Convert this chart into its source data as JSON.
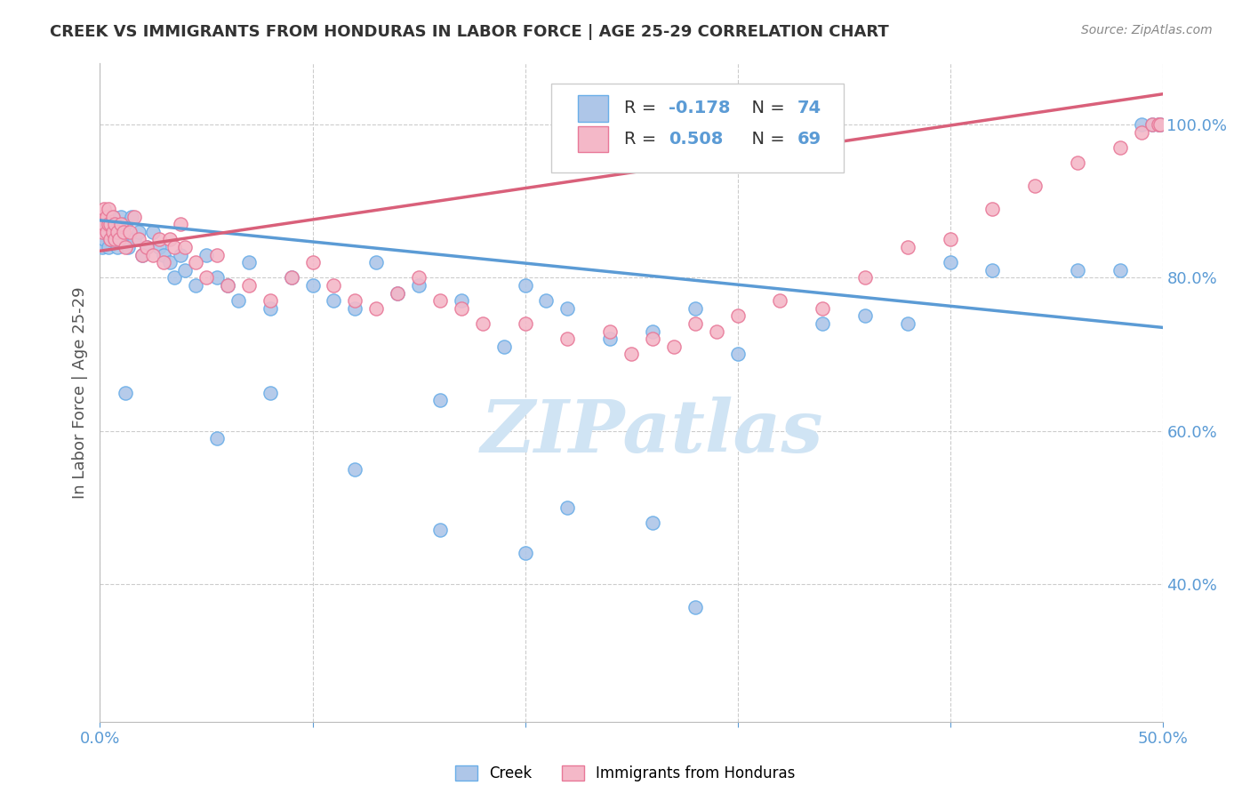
{
  "title": "CREEK VS IMMIGRANTS FROM HONDURAS IN LABOR FORCE | AGE 25-29 CORRELATION CHART",
  "source": "Source: ZipAtlas.com",
  "ylabel": "In Labor Force | Age 25-29",
  "xlim": [
    0.0,
    0.5
  ],
  "ylim": [
    0.22,
    1.08
  ],
  "creek_color": "#aec6e8",
  "creek_edge_color": "#6aaee8",
  "honduras_color": "#f4b8c8",
  "honduras_edge_color": "#e87898",
  "creek_line_color": "#5b9bd5",
  "honduras_line_color": "#d9607a",
  "watermark_color": "#d0e4f4",
  "grid_color": "#cccccc",
  "axis_color": "#5b9bd5",
  "title_color": "#333333",
  "source_color": "#888888",
  "ylabel_color": "#555555",
  "background_color": "#ffffff",
  "creek_R": -0.178,
  "creek_N": 74,
  "honduras_R": 0.508,
  "honduras_N": 69,
  "creek_line_x0": 0.0,
  "creek_line_y0": 0.875,
  "creek_line_x1": 0.5,
  "creek_line_y1": 0.735,
  "honduras_line_x0": 0.0,
  "honduras_line_y0": 0.835,
  "honduras_line_x1": 0.5,
  "honduras_line_y1": 1.04,
  "creek_scatter_x": [
    0.001,
    0.001,
    0.002,
    0.002,
    0.002,
    0.003,
    0.003,
    0.003,
    0.004,
    0.004,
    0.004,
    0.005,
    0.005,
    0.005,
    0.006,
    0.006,
    0.007,
    0.007,
    0.008,
    0.008,
    0.009,
    0.009,
    0.01,
    0.01,
    0.011,
    0.012,
    0.013,
    0.015,
    0.016,
    0.018,
    0.02,
    0.022,
    0.025,
    0.028,
    0.03,
    0.033,
    0.035,
    0.038,
    0.04,
    0.045,
    0.05,
    0.055,
    0.06,
    0.065,
    0.07,
    0.08,
    0.09,
    0.1,
    0.11,
    0.12,
    0.13,
    0.14,
    0.15,
    0.16,
    0.17,
    0.19,
    0.2,
    0.21,
    0.22,
    0.24,
    0.26,
    0.28,
    0.3,
    0.34,
    0.36,
    0.38,
    0.4,
    0.42,
    0.46,
    0.48,
    0.49,
    0.495,
    0.498,
    0.499
  ],
  "creek_scatter_y": [
    0.88,
    0.84,
    0.87,
    0.85,
    0.86,
    0.86,
    0.87,
    0.88,
    0.84,
    0.86,
    0.87,
    0.85,
    0.86,
    0.87,
    0.88,
    0.86,
    0.85,
    0.87,
    0.84,
    0.86,
    0.85,
    0.87,
    0.86,
    0.88,
    0.85,
    0.87,
    0.84,
    0.88,
    0.85,
    0.86,
    0.83,
    0.84,
    0.86,
    0.84,
    0.83,
    0.82,
    0.8,
    0.83,
    0.81,
    0.79,
    0.83,
    0.8,
    0.79,
    0.77,
    0.82,
    0.76,
    0.8,
    0.79,
    0.77,
    0.76,
    0.82,
    0.78,
    0.79,
    0.64,
    0.77,
    0.71,
    0.79,
    0.77,
    0.76,
    0.72,
    0.73,
    0.76,
    0.7,
    0.74,
    0.75,
    0.74,
    0.82,
    0.81,
    0.81,
    0.81,
    1.0,
    1.0,
    1.0,
    1.0
  ],
  "creek_outlier_x": [
    0.012,
    0.055,
    0.08,
    0.12,
    0.16,
    0.2,
    0.22,
    0.26,
    0.28
  ],
  "creek_outlier_y": [
    0.65,
    0.59,
    0.65,
    0.55,
    0.47,
    0.44,
    0.5,
    0.48,
    0.37
  ],
  "honduras_scatter_x": [
    0.001,
    0.001,
    0.002,
    0.002,
    0.003,
    0.003,
    0.004,
    0.004,
    0.005,
    0.005,
    0.006,
    0.006,
    0.007,
    0.007,
    0.008,
    0.009,
    0.01,
    0.011,
    0.012,
    0.014,
    0.016,
    0.018,
    0.02,
    0.022,
    0.025,
    0.028,
    0.03,
    0.033,
    0.035,
    0.038,
    0.04,
    0.045,
    0.05,
    0.055,
    0.06,
    0.07,
    0.08,
    0.09,
    0.1,
    0.11,
    0.12,
    0.13,
    0.14,
    0.15,
    0.16,
    0.17,
    0.18,
    0.2,
    0.22,
    0.24,
    0.25,
    0.26,
    0.27,
    0.28,
    0.29,
    0.3,
    0.32,
    0.34,
    0.36,
    0.38,
    0.4,
    0.42,
    0.44,
    0.46,
    0.48,
    0.49,
    0.495,
    0.498,
    0.499
  ],
  "honduras_scatter_y": [
    0.88,
    0.86,
    0.87,
    0.89,
    0.86,
    0.88,
    0.87,
    0.89,
    0.85,
    0.87,
    0.86,
    0.88,
    0.85,
    0.87,
    0.86,
    0.85,
    0.87,
    0.86,
    0.84,
    0.86,
    0.88,
    0.85,
    0.83,
    0.84,
    0.83,
    0.85,
    0.82,
    0.85,
    0.84,
    0.87,
    0.84,
    0.82,
    0.8,
    0.83,
    0.79,
    0.79,
    0.77,
    0.8,
    0.82,
    0.79,
    0.77,
    0.76,
    0.78,
    0.8,
    0.77,
    0.76,
    0.74,
    0.74,
    0.72,
    0.73,
    0.7,
    0.72,
    0.71,
    0.74,
    0.73,
    0.75,
    0.77,
    0.76,
    0.8,
    0.84,
    0.85,
    0.89,
    0.92,
    0.95,
    0.97,
    0.99,
    1.0,
    1.0,
    1.0
  ]
}
